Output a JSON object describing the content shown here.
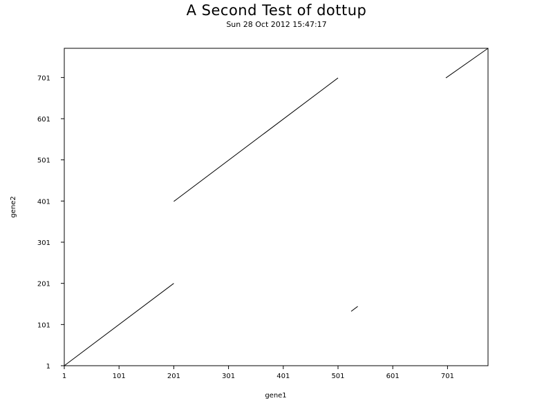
{
  "chart_data": {
    "type": "line",
    "title": "A Second Test of dottup",
    "subtitle": "Sun 28 Oct 2012 15:47:17",
    "xlabel": "gene1",
    "ylabel": "gene2",
    "xlim": [
      1,
      775
    ],
    "ylim": [
      1,
      772
    ],
    "xticks": [
      1,
      101,
      201,
      301,
      401,
      501,
      601,
      701
    ],
    "yticks": [
      1,
      101,
      201,
      301,
      401,
      501,
      601,
      701
    ],
    "grid": false,
    "series": [
      {
        "x": [
          1,
          201
        ],
        "y": [
          1,
          201
        ]
      },
      {
        "x": [
          201,
          501
        ],
        "y": [
          400,
          700
        ]
      },
      {
        "x": [
          525,
          537
        ],
        "y": [
          133,
          145
        ]
      },
      {
        "x": [
          698,
          775
        ],
        "y": [
          700,
          772
        ]
      }
    ],
    "line_color": "#000000"
  }
}
